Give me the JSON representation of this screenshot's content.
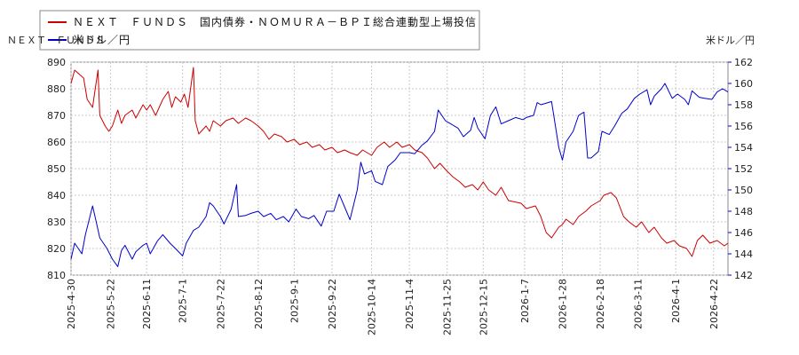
{
  "chart_data": {
    "type": "line",
    "legend": {
      "placement": "top-left",
      "entries": [
        {
          "label": "ＮＥＸＴ　ＦＵＮＤＳ　国内債券・ＮＯＭＵＲＡ－ＢＰＩ総合連動型上場投信",
          "color": "#cc0000"
        },
        {
          "label": "米ドル／円",
          "color": "#0000cc"
        }
      ]
    },
    "left_axis_unit_label": "ＮＥＸＴ　ＦＵＮＤＳ",
    "right_axis_unit_label": "米ドル／円",
    "y_left": {
      "min": 810,
      "max": 890,
      "ticks": [
        810,
        820,
        830,
        840,
        850,
        860,
        870,
        880,
        890
      ]
    },
    "y_right": {
      "min": 142,
      "max": 162,
      "ticks": [
        142,
        144,
        146,
        148,
        150,
        152,
        154,
        156,
        158,
        160,
        162
      ]
    },
    "x_range": [
      "2025-04-30",
      "2026-04-30"
    ],
    "x_tick_labels": [
      "2025-4-30",
      "2025-5-22",
      "2025-6-11",
      "2025-7-1",
      "2025-7-22",
      "2025-8-12",
      "2025-9-1",
      "2025-9-22",
      "2025-10-14",
      "2025-11-4",
      "2025-11-25",
      "2025-12-15",
      "2026-1-7",
      "2026-1-28",
      "2026-2-18",
      "2026-3-11",
      "2026-4-1",
      "2026-4-22"
    ],
    "grid": true,
    "series": [
      {
        "name": "ＮＥＸＴ　ＦＵＮＤＳ　国内債券・ＮＯＭＵＲＡ－ＢＰＩ総合連動型上場投信",
        "axis": "left",
        "color": "#cc0000",
        "points": [
          [
            "2025-04-30",
            882
          ],
          [
            "2025-05-02",
            887
          ],
          [
            "2025-05-07",
            884
          ],
          [
            "2025-05-09",
            876
          ],
          [
            "2025-05-12",
            873
          ],
          [
            "2025-05-13",
            878
          ],
          [
            "2025-05-15",
            887
          ],
          [
            "2025-05-16",
            870
          ],
          [
            "2025-05-19",
            866
          ],
          [
            "2025-05-21",
            864
          ],
          [
            "2025-05-23",
            866
          ],
          [
            "2025-05-26",
            872
          ],
          [
            "2025-05-28",
            867
          ],
          [
            "2025-05-30",
            870
          ],
          [
            "2025-06-03",
            872
          ],
          [
            "2025-06-05",
            869
          ],
          [
            "2025-06-09",
            874
          ],
          [
            "2025-06-11",
            872
          ],
          [
            "2025-06-13",
            874
          ],
          [
            "2025-06-16",
            870
          ],
          [
            "2025-06-18",
            873
          ],
          [
            "2025-06-20",
            876
          ],
          [
            "2025-06-23",
            879
          ],
          [
            "2025-06-25",
            873
          ],
          [
            "2025-06-27",
            877
          ],
          [
            "2025-06-30",
            875
          ],
          [
            "2025-07-02",
            878
          ],
          [
            "2025-07-04",
            873
          ],
          [
            "2025-07-07",
            888
          ],
          [
            "2025-07-08",
            868
          ],
          [
            "2025-07-10",
            863
          ],
          [
            "2025-07-14",
            866
          ],
          [
            "2025-07-16",
            864
          ],
          [
            "2025-07-18",
            868
          ],
          [
            "2025-07-22",
            866
          ],
          [
            "2025-07-25",
            868
          ],
          [
            "2025-07-29",
            869
          ],
          [
            "2025-08-01",
            867
          ],
          [
            "2025-08-05",
            869
          ],
          [
            "2025-08-08",
            868
          ],
          [
            "2025-08-12",
            866
          ],
          [
            "2025-08-15",
            864
          ],
          [
            "2025-08-18",
            861
          ],
          [
            "2025-08-21",
            863
          ],
          [
            "2025-08-25",
            862
          ],
          [
            "2025-08-28",
            860
          ],
          [
            "2025-09-01",
            861
          ],
          [
            "2025-09-04",
            859
          ],
          [
            "2025-09-08",
            860
          ],
          [
            "2025-09-11",
            858
          ],
          [
            "2025-09-15",
            859
          ],
          [
            "2025-09-18",
            857
          ],
          [
            "2025-09-22",
            858
          ],
          [
            "2025-09-25",
            856
          ],
          [
            "2025-09-29",
            857
          ],
          [
            "2025-10-02",
            856
          ],
          [
            "2025-10-06",
            855
          ],
          [
            "2025-10-09",
            857
          ],
          [
            "2025-10-14",
            855
          ],
          [
            "2025-10-17",
            858
          ],
          [
            "2025-10-21",
            860
          ],
          [
            "2025-10-24",
            858
          ],
          [
            "2025-10-28",
            860
          ],
          [
            "2025-10-31",
            858
          ],
          [
            "2025-11-04",
            859
          ],
          [
            "2025-11-07",
            857
          ],
          [
            "2025-11-11",
            856
          ],
          [
            "2025-11-14",
            854
          ],
          [
            "2025-11-18",
            850
          ],
          [
            "2025-11-21",
            852
          ],
          [
            "2025-11-25",
            849
          ],
          [
            "2025-11-28",
            847
          ],
          [
            "2025-12-02",
            845
          ],
          [
            "2025-12-05",
            843
          ],
          [
            "2025-12-09",
            844
          ],
          [
            "2025-12-12",
            842
          ],
          [
            "2025-12-15",
            845
          ],
          [
            "2025-12-18",
            842
          ],
          [
            "2025-12-22",
            840
          ],
          [
            "2025-12-25",
            843
          ],
          [
            "2025-12-29",
            838
          ],
          [
            "2026-01-05",
            837
          ],
          [
            "2026-01-08",
            835
          ],
          [
            "2026-01-13",
            836
          ],
          [
            "2026-01-16",
            832
          ],
          [
            "2026-01-19",
            826
          ],
          [
            "2026-01-22",
            824
          ],
          [
            "2026-01-26",
            828
          ],
          [
            "2026-01-28",
            829
          ],
          [
            "2026-01-30",
            831
          ],
          [
            "2026-02-03",
            829
          ],
          [
            "2026-02-06",
            832
          ],
          [
            "2026-02-10",
            834
          ],
          [
            "2026-02-13",
            836
          ],
          [
            "2026-02-18",
            838
          ],
          [
            "2026-02-20",
            840
          ],
          [
            "2026-02-24",
            841
          ],
          [
            "2026-02-27",
            839
          ],
          [
            "2026-03-03",
            832
          ],
          [
            "2026-03-06",
            830
          ],
          [
            "2026-03-10",
            828
          ],
          [
            "2026-03-13",
            830
          ],
          [
            "2026-03-17",
            826
          ],
          [
            "2026-03-20",
            828
          ],
          [
            "2026-03-24",
            824
          ],
          [
            "2026-03-27",
            822
          ],
          [
            "2026-03-31",
            823
          ],
          [
            "2026-04-03",
            821
          ],
          [
            "2026-04-07",
            820
          ],
          [
            "2026-04-10",
            817
          ],
          [
            "2026-04-13",
            823
          ],
          [
            "2026-04-16",
            825
          ],
          [
            "2026-04-20",
            822
          ],
          [
            "2026-04-24",
            823
          ],
          [
            "2026-04-28",
            821
          ],
          [
            "2026-04-30",
            822
          ]
        ]
      },
      {
        "name": "米ドル／円",
        "axis": "right",
        "color": "#0000cc",
        "points": [
          [
            "2025-04-30",
            143.5
          ],
          [
            "2025-05-02",
            145.0
          ],
          [
            "2025-05-06",
            144.0
          ],
          [
            "2025-05-08",
            145.8
          ],
          [
            "2025-05-12",
            148.5
          ],
          [
            "2025-05-14",
            147.0
          ],
          [
            "2025-05-16",
            145.5
          ],
          [
            "2025-05-20",
            144.5
          ],
          [
            "2025-05-23",
            143.5
          ],
          [
            "2025-05-26",
            142.8
          ],
          [
            "2025-05-28",
            144.3
          ],
          [
            "2025-05-30",
            144.8
          ],
          [
            "2025-06-03",
            143.5
          ],
          [
            "2025-06-05",
            144.2
          ],
          [
            "2025-06-09",
            144.8
          ],
          [
            "2025-06-11",
            145.0
          ],
          [
            "2025-06-13",
            144.0
          ],
          [
            "2025-06-17",
            145.2
          ],
          [
            "2025-06-20",
            145.8
          ],
          [
            "2025-06-24",
            145.0
          ],
          [
            "2025-06-27",
            144.5
          ],
          [
            "2025-07-01",
            143.8
          ],
          [
            "2025-07-03",
            145.0
          ],
          [
            "2025-07-07",
            146.2
          ],
          [
            "2025-07-10",
            146.5
          ],
          [
            "2025-07-14",
            147.5
          ],
          [
            "2025-07-16",
            148.8
          ],
          [
            "2025-07-18",
            148.5
          ],
          [
            "2025-07-22",
            147.5
          ],
          [
            "2025-07-24",
            146.8
          ],
          [
            "2025-07-28",
            148.2
          ],
          [
            "2025-07-31",
            150.5
          ],
          [
            "2025-08-01",
            147.5
          ],
          [
            "2025-08-05",
            147.6
          ],
          [
            "2025-08-08",
            147.8
          ],
          [
            "2025-08-12",
            148.0
          ],
          [
            "2025-08-15",
            147.5
          ],
          [
            "2025-08-19",
            147.8
          ],
          [
            "2025-08-22",
            147.2
          ],
          [
            "2025-08-26",
            147.5
          ],
          [
            "2025-08-29",
            147.0
          ],
          [
            "2025-09-02",
            148.2
          ],
          [
            "2025-09-05",
            147.5
          ],
          [
            "2025-09-09",
            147.3
          ],
          [
            "2025-09-12",
            147.6
          ],
          [
            "2025-09-16",
            146.6
          ],
          [
            "2025-09-19",
            148.0
          ],
          [
            "2025-09-23",
            148.0
          ],
          [
            "2025-09-26",
            149.6
          ],
          [
            "2025-09-30",
            148.0
          ],
          [
            "2025-10-02",
            147.2
          ],
          [
            "2025-10-06",
            150.0
          ],
          [
            "2025-10-08",
            152.6
          ],
          [
            "2025-10-10",
            151.5
          ],
          [
            "2025-10-14",
            151.8
          ],
          [
            "2025-10-16",
            150.8
          ],
          [
            "2025-10-20",
            150.5
          ],
          [
            "2025-10-23",
            152.2
          ],
          [
            "2025-10-27",
            152.8
          ],
          [
            "2025-10-30",
            153.5
          ],
          [
            "2025-11-04",
            153.5
          ],
          [
            "2025-11-07",
            153.4
          ],
          [
            "2025-11-11",
            154.2
          ],
          [
            "2025-11-14",
            154.6
          ],
          [
            "2025-11-18",
            155.5
          ],
          [
            "2025-11-20",
            157.5
          ],
          [
            "2025-11-24",
            156.5
          ],
          [
            "2025-11-26",
            156.3
          ],
          [
            "2025-12-01",
            155.8
          ],
          [
            "2025-12-04",
            155.0
          ],
          [
            "2025-12-08",
            155.6
          ],
          [
            "2025-12-10",
            156.8
          ],
          [
            "2025-12-12",
            155.8
          ],
          [
            "2025-12-16",
            154.8
          ],
          [
            "2025-12-19",
            157.0
          ],
          [
            "2025-12-22",
            157.8
          ],
          [
            "2025-12-25",
            156.2
          ],
          [
            "2025-12-29",
            156.5
          ],
          [
            "2026-01-02",
            156.8
          ],
          [
            "2026-01-06",
            156.6
          ],
          [
            "2026-01-08",
            156.8
          ],
          [
            "2026-01-12",
            157.0
          ],
          [
            "2026-01-14",
            158.2
          ],
          [
            "2026-01-16",
            158.0
          ],
          [
            "2026-01-20",
            158.2
          ],
          [
            "2026-01-22",
            158.3
          ],
          [
            "2026-01-26",
            154.0
          ],
          [
            "2026-01-28",
            152.8
          ],
          [
            "2026-01-30",
            154.5
          ],
          [
            "2026-02-03",
            155.5
          ],
          [
            "2026-02-06",
            157.0
          ],
          [
            "2026-02-09",
            157.3
          ],
          [
            "2026-02-11",
            153.0
          ],
          [
            "2026-02-13",
            153.0
          ],
          [
            "2026-02-17",
            153.6
          ],
          [
            "2026-02-19",
            155.5
          ],
          [
            "2026-02-23",
            155.2
          ],
          [
            "2026-02-26",
            156.0
          ],
          [
            "2026-03-02",
            157.2
          ],
          [
            "2026-03-05",
            157.6
          ],
          [
            "2026-03-09",
            158.6
          ],
          [
            "2026-03-12",
            159.0
          ],
          [
            "2026-03-16",
            159.4
          ],
          [
            "2026-03-18",
            158.0
          ],
          [
            "2026-03-20",
            158.8
          ],
          [
            "2026-03-24",
            159.5
          ],
          [
            "2026-03-26",
            160.0
          ],
          [
            "2026-03-30",
            158.6
          ],
          [
            "2026-04-02",
            159.0
          ],
          [
            "2026-04-06",
            158.5
          ],
          [
            "2026-04-08",
            158.0
          ],
          [
            "2026-04-10",
            159.3
          ],
          [
            "2026-04-14",
            158.7
          ],
          [
            "2026-04-17",
            158.6
          ],
          [
            "2026-04-21",
            158.5
          ],
          [
            "2026-04-24",
            159.2
          ],
          [
            "2026-04-27",
            159.5
          ],
          [
            "2026-04-30",
            159.2
          ]
        ]
      }
    ]
  }
}
